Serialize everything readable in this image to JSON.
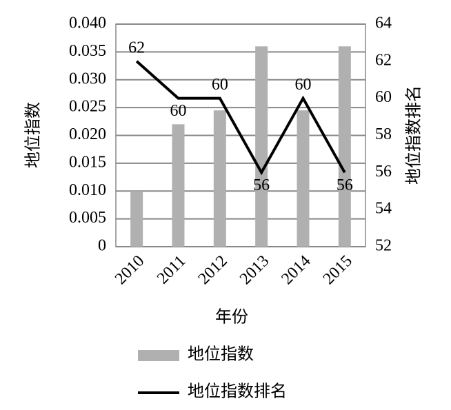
{
  "chart_data": {
    "type": "bar",
    "categories": [
      "2010",
      "2011",
      "2012",
      "2013",
      "2014",
      "2015"
    ],
    "series": [
      {
        "name": "地位指数",
        "type": "bar",
        "color": "#b0b0b0",
        "values": [
          0.01,
          0.022,
          0.0245,
          0.036,
          0.0245,
          0.036
        ]
      },
      {
        "name": "地位指数排名",
        "type": "line",
        "axis": "y2",
        "color": "#000000",
        "values": [
          62,
          60,
          60,
          56,
          60,
          56
        ],
        "data_labels": true
      }
    ],
    "xlabel": "年份",
    "ylabel": "地位指数",
    "y2label": "地位指数排名",
    "ylim": [
      0,
      0.04
    ],
    "yticks": [
      0,
      0.005,
      {
        "value": 0.01,
        "label": "0.010"
      },
      0.015,
      {
        "value": 0.02,
        "label": "0.020"
      },
      0.025,
      {
        "value": 0.03,
        "label": "0.030"
      },
      0.035,
      {
        "value": 0.04,
        "label": "0.040"
      }
    ],
    "y2lim": [
      52,
      64
    ],
    "y2ticks": [
      52,
      54,
      56,
      58,
      60,
      62,
      64
    ],
    "grid": true,
    "legend": "bottom"
  }
}
